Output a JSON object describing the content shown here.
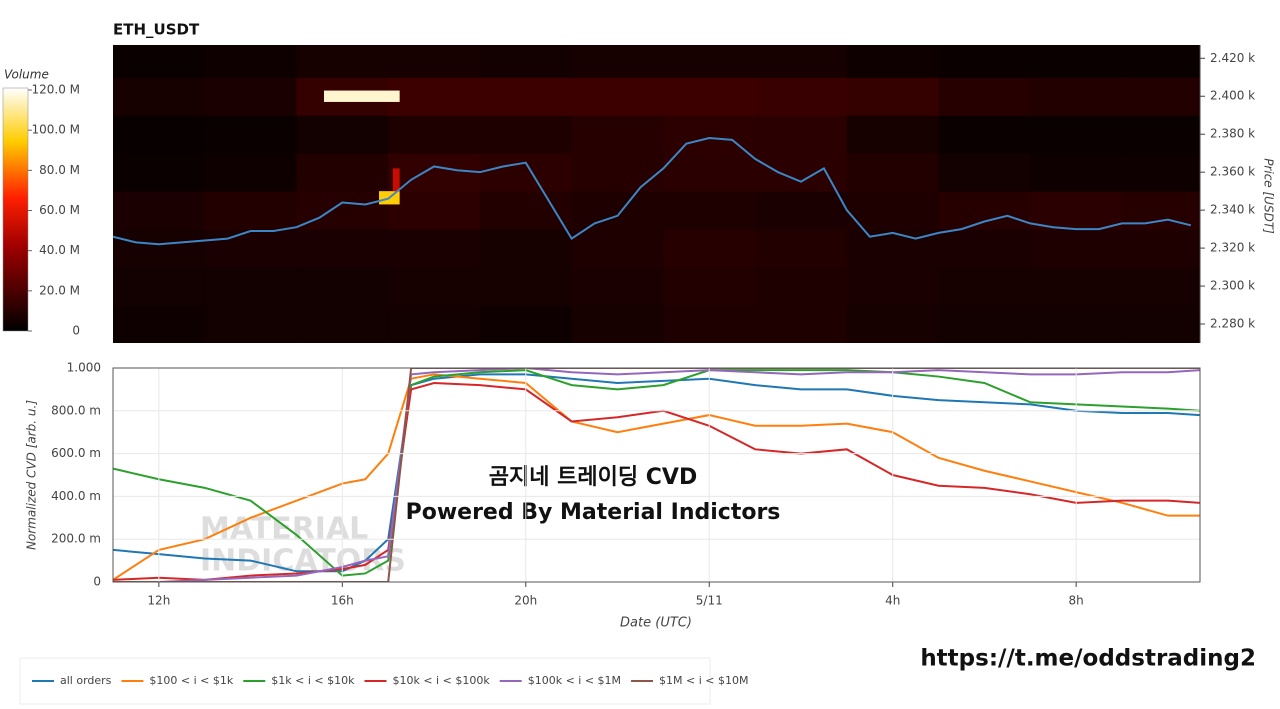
{
  "chart_data": [
    {
      "type": "heatmap",
      "title": "ETH_USDT",
      "y_label": "Price [USDT]",
      "colorbar_label": "Volume",
      "xlim": [
        11,
        34.7
      ],
      "ylim": [
        2270,
        2427
      ],
      "yticks": [
        {
          "value": 2280,
          "label": "2.280 k"
        },
        {
          "value": 2300,
          "label": "2.300 k"
        },
        {
          "value": 2320,
          "label": "2.320 k"
        },
        {
          "value": 2340,
          "label": "2.340 k"
        },
        {
          "value": 2360,
          "label": "2.360 k"
        },
        {
          "value": 2380,
          "label": "2.380 k"
        },
        {
          "value": 2400,
          "label": "2.400 k"
        },
        {
          "value": 2420,
          "label": "2.420 k"
        }
      ],
      "clim": [
        0,
        121000000
      ],
      "cticks": [
        0,
        {
          "value": 20000000,
          "label": "20.0 M"
        },
        {
          "value": 40000000,
          "label": "40.0 M"
        },
        {
          "value": 60000000,
          "label": "60.0 M"
        },
        {
          "value": 80000000,
          "label": "80.0 M"
        },
        {
          "value": 100000000,
          "label": "100.0 M"
        },
        {
          "value": 120000000,
          "label": "120.0 M"
        }
      ],
      "time_bins": [
        11,
        13,
        15,
        17,
        19,
        21,
        23,
        25,
        27,
        29,
        31,
        33,
        35
      ],
      "price_bins": [
        2270,
        2290,
        2310,
        2330,
        2350,
        2370,
        2390,
        2410,
        2430
      ],
      "volumes": [
        [
          4000000,
          5000000,
          5000000,
          5000000,
          4000000,
          6000000,
          8000000,
          8000000,
          6000000,
          5000000,
          5000000,
          5000000
        ],
        [
          5000000,
          5000000,
          5000000,
          6000000,
          6000000,
          7000000,
          9000000,
          8000000,
          7000000,
          6000000,
          6000000,
          6000000
        ],
        [
          6000000,
          7000000,
          7000000,
          7000000,
          6000000,
          8000000,
          10000000,
          9000000,
          7000000,
          7000000,
          8000000,
          8000000
        ],
        [
          7000000,
          9000000,
          10000000,
          12000000,
          9000000,
          8000000,
          8000000,
          7000000,
          8000000,
          10000000,
          11000000,
          10000000
        ],
        [
          3000000,
          4000000,
          9000000,
          13000000,
          12000000,
          10000000,
          11000000,
          11000000,
          9000000,
          5000000,
          4000000,
          4000000
        ],
        [
          2000000,
          3000000,
          5000000,
          8000000,
          8000000,
          10000000,
          12000000,
          11000000,
          6000000,
          3000000,
          3000000,
          3000000
        ],
        [
          6000000,
          7000000,
          14000000,
          16000000,
          16000000,
          16000000,
          16000000,
          15000000,
          14000000,
          10000000,
          9000000,
          9000000
        ],
        [
          3000000,
          4000000,
          6000000,
          6000000,
          5000000,
          6000000,
          6000000,
          6000000,
          4000000,
          3000000,
          3000000,
          3000000
        ]
      ],
      "highlights": [
        {
          "time": [
            15.6,
            17.25
          ],
          "price": [
            2397,
            2403
          ],
          "volume": 116000000
        },
        {
          "time": [
            16.8,
            17.25
          ],
          "price": [
            2343,
            2350
          ],
          "volume": 95000000
        },
        {
          "time": [
            17.1,
            17.25
          ],
          "price": [
            2350,
            2362
          ],
          "volume": 52000000
        }
      ],
      "x": [
        11,
        11.5,
        12,
        12.5,
        13,
        13.5,
        14,
        14.5,
        15,
        15.5,
        16,
        16.5,
        17,
        17.5,
        18,
        18.5,
        19,
        19.5,
        20,
        20.5,
        21,
        21.5,
        22,
        22.5,
        23,
        23.5,
        24,
        24.5,
        25,
        25.5,
        26,
        26.5,
        27,
        27.5,
        28,
        28.5,
        29,
        29.5,
        30,
        30.5,
        31,
        31.5,
        32,
        32.5,
        33,
        33.5,
        34,
        34.5
      ],
      "series": [
        {
          "color": "#3d86c6",
          "values": [
            2326,
            2323,
            2322,
            2323,
            2324,
            2325,
            2329,
            2329,
            2331,
            2336,
            2344,
            2343,
            2346,
            2356,
            2363,
            2361,
            2360,
            2363,
            2365,
            2345,
            2325,
            2333,
            2337,
            2352,
            2362,
            2375,
            2378,
            2377,
            2367,
            2360,
            2355,
            2362,
            2340,
            2326,
            2328,
            2325,
            2328,
            2330,
            2334,
            2337,
            2333,
            2331,
            2330,
            2330,
            2333,
            2333,
            2335,
            2332
          ]
        }
      ]
    },
    {
      "type": "line",
      "y_label": "Normalized CVD [arb. u.]",
      "x_label": "Date (UTC)",
      "xlim": [
        11,
        34.7
      ],
      "ylim": [
        0,
        1.0
      ],
      "xticks": [
        {
          "value": 12,
          "label": "12h"
        },
        {
          "value": 16,
          "label": "16h"
        },
        {
          "value": 20,
          "label": "20h"
        },
        {
          "value": 24,
          "label": "5/11"
        },
        {
          "value": 28,
          "label": "4h"
        },
        {
          "value": 32,
          "label": "8h"
        }
      ],
      "yticks": [
        0,
        {
          "value": 0.2,
          "label": "200.0 m"
        },
        {
          "value": 0.4,
          "label": "400.0 m"
        },
        {
          "value": 0.6,
          "label": "600.0 m"
        },
        {
          "value": 0.8,
          "label": "800.0 m"
        },
        {
          "value": 1.0,
          "label": "1.000"
        }
      ],
      "grid": true,
      "x": [
        11,
        12,
        13,
        14,
        15,
        16,
        16.5,
        17,
        17.5,
        18,
        19,
        20,
        21,
        22,
        23,
        24,
        25,
        26,
        27,
        28,
        29,
        30,
        31,
        32,
        33,
        34,
        34.7
      ],
      "series": [
        {
          "name": "all orders",
          "color": "#1f77b4",
          "values": [
            0.15,
            0.13,
            0.11,
            0.1,
            0.05,
            0.05,
            0.1,
            0.2,
            0.92,
            0.95,
            0.97,
            0.97,
            0.95,
            0.93,
            0.94,
            0.95,
            0.92,
            0.9,
            0.9,
            0.87,
            0.85,
            0.84,
            0.83,
            0.8,
            0.79,
            0.79,
            0.78
          ]
        },
        {
          "name": "$100 < i < $1k",
          "color": "#ff7f0e",
          "values": [
            0.01,
            0.15,
            0.2,
            0.3,
            0.38,
            0.46,
            0.48,
            0.6,
            0.95,
            0.97,
            0.95,
            0.93,
            0.75,
            0.7,
            0.74,
            0.78,
            0.73,
            0.73,
            0.74,
            0.7,
            0.58,
            0.52,
            0.47,
            0.42,
            0.37,
            0.31,
            0.31
          ]
        },
        {
          "name": "$1k < i < $10k",
          "color": "#2ca02c",
          "values": [
            0.53,
            0.48,
            0.44,
            0.38,
            0.22,
            0.03,
            0.04,
            0.1,
            0.92,
            0.96,
            0.98,
            0.99,
            0.92,
            0.9,
            0.92,
            0.99,
            0.99,
            0.99,
            0.99,
            0.98,
            0.96,
            0.93,
            0.84,
            0.83,
            0.82,
            0.81,
            0.8
          ]
        },
        {
          "name": "$10k < i < $100k",
          "color": "#d62728",
          "values": [
            0.01,
            0.02,
            0.01,
            0.03,
            0.04,
            0.06,
            0.08,
            0.15,
            0.9,
            0.93,
            0.92,
            0.9,
            0.75,
            0.77,
            0.8,
            0.73,
            0.62,
            0.6,
            0.62,
            0.5,
            0.45,
            0.44,
            0.41,
            0.37,
            0.38,
            0.38,
            0.37
          ]
        },
        {
          "name": "$100k < i < $1M",
          "color": "#9467bd",
          "values": [
            0,
            0,
            0.01,
            0.02,
            0.03,
            0.07,
            0.1,
            0.12,
            0.97,
            0.98,
            0.99,
            1.0,
            0.98,
            0.97,
            0.98,
            0.99,
            0.98,
            0.97,
            0.98,
            0.98,
            0.99,
            0.98,
            0.97,
            0.97,
            0.98,
            0.98,
            0.99
          ]
        },
        {
          "name": "$1M < i < $10M",
          "color": "#8c564b",
          "values": [
            0,
            0,
            0,
            0,
            0,
            0,
            0,
            0,
            1.0,
            1.0,
            1.0,
            1.0,
            1.0,
            1.0,
            1.0,
            1.0,
            1.0,
            1.0,
            1.0,
            1.0,
            1.0,
            1.0,
            1.0,
            1.0,
            1.0,
            1.0,
            1.0
          ]
        }
      ]
    }
  ],
  "watermark": [
    "MATERIAL",
    "INDICATORS"
  ],
  "annotations": [
    "곰지네 트레이딩 CVD",
    "Powered By Material Indictors"
  ],
  "link": "https://t.me/oddstrading2"
}
